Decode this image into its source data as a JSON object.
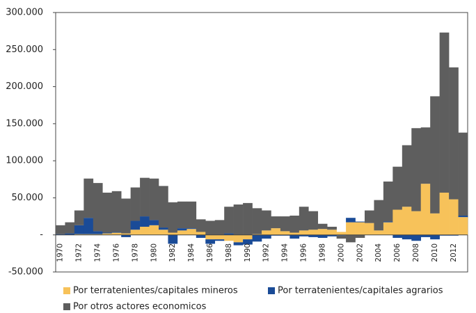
{
  "chart_data": {
    "type": "stacked_bar",
    "categories": [
      "1970",
      null,
      "1972",
      null,
      "1974",
      null,
      "1976",
      null,
      "1978",
      null,
      "1980",
      null,
      "1982",
      null,
      "1984",
      null,
      "1986",
      null,
      "1988",
      null,
      "1990",
      null,
      "1992",
      null,
      "1994",
      null,
      "1996",
      null,
      "1998",
      null,
      "2000",
      null,
      "2002",
      null,
      "2004",
      null,
      "2006",
      null,
      "2008",
      null,
      "2010",
      null,
      "2012",
      null
    ],
    "series": [
      {
        "name": "Por terratenientes/capitales mineros",
        "color": "#f7c25a",
        "values": [
          0,
          0,
          1000,
          1000,
          1000,
          2000,
          3000,
          2000,
          7000,
          11000,
          13000,
          7000,
          3000,
          6000,
          8000,
          4000,
          -6000,
          -6000,
          -8000,
          -10000,
          -6000,
          1000,
          6000,
          9000,
          5000,
          3000,
          6000,
          7000,
          8000,
          7000,
          4000,
          17000,
          17000,
          16000,
          6000,
          17000,
          34000,
          38000,
          32000,
          69000,
          29000,
          57000,
          48000,
          24000
        ]
      },
      {
        "name": "Por terratenientes/capitales agrarios",
        "color": "#1a4b97",
        "values": [
          1000,
          2000,
          12000,
          22000,
          4000,
          1000,
          1000,
          -3000,
          12000,
          14000,
          7000,
          3000,
          -12000,
          3000,
          1000,
          -4000,
          -6000,
          -2000,
          2000,
          -4000,
          -7000,
          -9000,
          -5000,
          -1000,
          -1000,
          -5000,
          -2000,
          -3000,
          -4000,
          -2000,
          -1000,
          6000,
          1000,
          0,
          0,
          1000,
          -4000,
          -6000,
          -8000,
          -3000,
          -6000,
          -1000,
          -1000,
          2000
        ]
      },
      {
        "name": "Por otros actores economicos",
        "color": "#5e5e5e",
        "values": [
          12000,
          15000,
          20000,
          53000,
          65000,
          54000,
          55000,
          47000,
          45000,
          52000,
          56000,
          56000,
          41000,
          36000,
          36000,
          17000,
          19000,
          20000,
          36000,
          41000,
          43000,
          35000,
          27000,
          16000,
          20000,
          23000,
          32000,
          25000,
          7000,
          4000,
          -4000,
          -10000,
          -4000,
          17000,
          41000,
          54000,
          58000,
          83000,
          112000,
          76000,
          158000,
          216000,
          178000,
          112000
        ]
      }
    ],
    "ylim": [
      -50000,
      300000
    ],
    "yticks": [
      {
        "value": -50000,
        "label": "-50.000"
      },
      {
        "value": 0,
        "label": "-"
      },
      {
        "value": 50000,
        "label": "50.000"
      },
      {
        "value": 100000,
        "label": "100.000"
      },
      {
        "value": 150000,
        "label": "150.000"
      },
      {
        "value": 200000,
        "label": "200.000"
      },
      {
        "value": 250000,
        "label": "250.000"
      },
      {
        "value": 300000,
        "label": "300.000"
      }
    ]
  }
}
